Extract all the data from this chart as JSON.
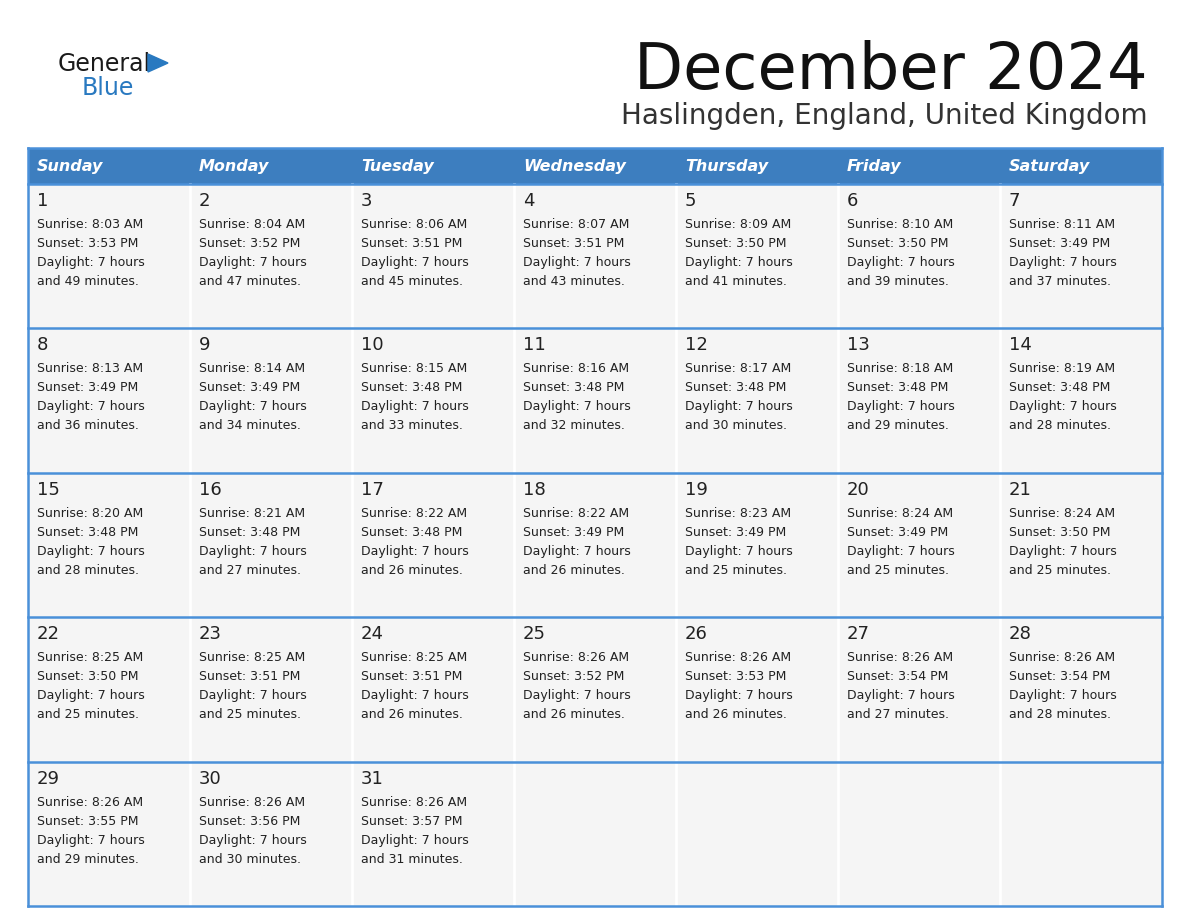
{
  "title": "December 2024",
  "subtitle": "Haslingden, England, United Kingdom",
  "days_of_week": [
    "Sunday",
    "Monday",
    "Tuesday",
    "Wednesday",
    "Thursday",
    "Friday",
    "Saturday"
  ],
  "header_bg": "#3d7ebf",
  "header_text": "#ffffff",
  "cell_bg": "#f5f5f5",
  "grid_line_color": "#4a90d9",
  "text_color": "#222222",
  "calendar": [
    [
      {
        "day": 1,
        "sunrise": "8:03 AM",
        "sunset": "3:53 PM",
        "daylight_hours": 7,
        "daylight_minutes": 49
      },
      {
        "day": 2,
        "sunrise": "8:04 AM",
        "sunset": "3:52 PM",
        "daylight_hours": 7,
        "daylight_minutes": 47
      },
      {
        "day": 3,
        "sunrise": "8:06 AM",
        "sunset": "3:51 PM",
        "daylight_hours": 7,
        "daylight_minutes": 45
      },
      {
        "day": 4,
        "sunrise": "8:07 AM",
        "sunset": "3:51 PM",
        "daylight_hours": 7,
        "daylight_minutes": 43
      },
      {
        "day": 5,
        "sunrise": "8:09 AM",
        "sunset": "3:50 PM",
        "daylight_hours": 7,
        "daylight_minutes": 41
      },
      {
        "day": 6,
        "sunrise": "8:10 AM",
        "sunset": "3:50 PM",
        "daylight_hours": 7,
        "daylight_minutes": 39
      },
      {
        "day": 7,
        "sunrise": "8:11 AM",
        "sunset": "3:49 PM",
        "daylight_hours": 7,
        "daylight_minutes": 37
      }
    ],
    [
      {
        "day": 8,
        "sunrise": "8:13 AM",
        "sunset": "3:49 PM",
        "daylight_hours": 7,
        "daylight_minutes": 36
      },
      {
        "day": 9,
        "sunrise": "8:14 AM",
        "sunset": "3:49 PM",
        "daylight_hours": 7,
        "daylight_minutes": 34
      },
      {
        "day": 10,
        "sunrise": "8:15 AM",
        "sunset": "3:48 PM",
        "daylight_hours": 7,
        "daylight_minutes": 33
      },
      {
        "day": 11,
        "sunrise": "8:16 AM",
        "sunset": "3:48 PM",
        "daylight_hours": 7,
        "daylight_minutes": 32
      },
      {
        "day": 12,
        "sunrise": "8:17 AM",
        "sunset": "3:48 PM",
        "daylight_hours": 7,
        "daylight_minutes": 30
      },
      {
        "day": 13,
        "sunrise": "8:18 AM",
        "sunset": "3:48 PM",
        "daylight_hours": 7,
        "daylight_minutes": 29
      },
      {
        "day": 14,
        "sunrise": "8:19 AM",
        "sunset": "3:48 PM",
        "daylight_hours": 7,
        "daylight_minutes": 28
      }
    ],
    [
      {
        "day": 15,
        "sunrise": "8:20 AM",
        "sunset": "3:48 PM",
        "daylight_hours": 7,
        "daylight_minutes": 28
      },
      {
        "day": 16,
        "sunrise": "8:21 AM",
        "sunset": "3:48 PM",
        "daylight_hours": 7,
        "daylight_minutes": 27
      },
      {
        "day": 17,
        "sunrise": "8:22 AM",
        "sunset": "3:48 PM",
        "daylight_hours": 7,
        "daylight_minutes": 26
      },
      {
        "day": 18,
        "sunrise": "8:22 AM",
        "sunset": "3:49 PM",
        "daylight_hours": 7,
        "daylight_minutes": 26
      },
      {
        "day": 19,
        "sunrise": "8:23 AM",
        "sunset": "3:49 PM",
        "daylight_hours": 7,
        "daylight_minutes": 25
      },
      {
        "day": 20,
        "sunrise": "8:24 AM",
        "sunset": "3:49 PM",
        "daylight_hours": 7,
        "daylight_minutes": 25
      },
      {
        "day": 21,
        "sunrise": "8:24 AM",
        "sunset": "3:50 PM",
        "daylight_hours": 7,
        "daylight_minutes": 25
      }
    ],
    [
      {
        "day": 22,
        "sunrise": "8:25 AM",
        "sunset": "3:50 PM",
        "daylight_hours": 7,
        "daylight_minutes": 25
      },
      {
        "day": 23,
        "sunrise": "8:25 AM",
        "sunset": "3:51 PM",
        "daylight_hours": 7,
        "daylight_minutes": 25
      },
      {
        "day": 24,
        "sunrise": "8:25 AM",
        "sunset": "3:51 PM",
        "daylight_hours": 7,
        "daylight_minutes": 26
      },
      {
        "day": 25,
        "sunrise": "8:26 AM",
        "sunset": "3:52 PM",
        "daylight_hours": 7,
        "daylight_minutes": 26
      },
      {
        "day": 26,
        "sunrise": "8:26 AM",
        "sunset": "3:53 PM",
        "daylight_hours": 7,
        "daylight_minutes": 26
      },
      {
        "day": 27,
        "sunrise": "8:26 AM",
        "sunset": "3:54 PM",
        "daylight_hours": 7,
        "daylight_minutes": 27
      },
      {
        "day": 28,
        "sunrise": "8:26 AM",
        "sunset": "3:54 PM",
        "daylight_hours": 7,
        "daylight_minutes": 28
      }
    ],
    [
      {
        "day": 29,
        "sunrise": "8:26 AM",
        "sunset": "3:55 PM",
        "daylight_hours": 7,
        "daylight_minutes": 29
      },
      {
        "day": 30,
        "sunrise": "8:26 AM",
        "sunset": "3:56 PM",
        "daylight_hours": 7,
        "daylight_minutes": 30
      },
      {
        "day": 31,
        "sunrise": "8:26 AM",
        "sunset": "3:57 PM",
        "daylight_hours": 7,
        "daylight_minutes": 31
      },
      null,
      null,
      null,
      null
    ]
  ],
  "logo_color_general": "#1a1a1a",
  "logo_color_blue": "#2979c0"
}
